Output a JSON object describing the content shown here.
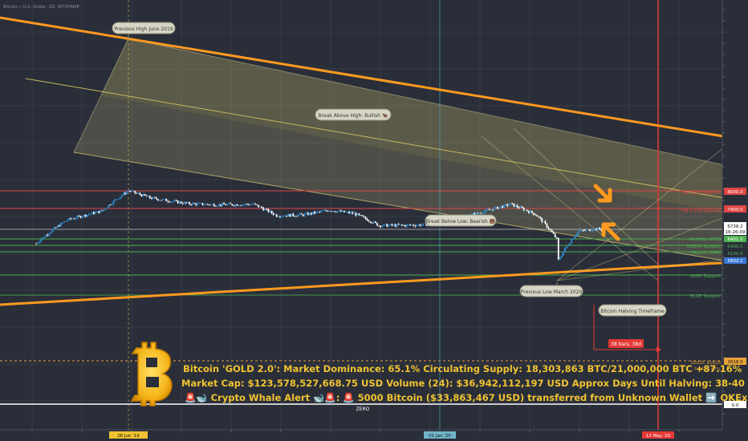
{
  "colors": {
    "background": "#2a2e39",
    "up": "#2d8fd6",
    "down": "#ffffff",
    "channel_fill": "#cfc37a",
    "trendline": "#ff9a1f",
    "level_red": "#e04646",
    "level_green": "#4caf50",
    "halving": "#e53935",
    "text_yellow": "#f2c12e"
  },
  "header": {
    "ticker": "Bitcoin / U.S. Dollar, 1D, BITSTAMP"
  },
  "annotations": {
    "prev_high": "Previous High June 2019",
    "break_above": "Break Above High: Bullish 🐂",
    "break_below": "Break Below Low: Bearish 🐻",
    "prev_low": "Previous Low March 2020",
    "halving_tf": "Bitcoin Halving Timeframe",
    "range": "38 bars, 38d"
  },
  "level_labels": {
    "fib_retrace": "FIB 0.618 Retrace",
    "monthly_open": "Monthly OPEN",
    "support_50ema": "50EMA Support",
    "weekly_open": "Weekly OPEN",
    "support_200": "200D Support",
    "support_hist": "ELGE Support",
    "gold": "GOLD: $1618",
    "gold_change": "-7.58 -0.47%",
    "zero": "ZERO"
  },
  "price_tags": {
    "p8000": "8000.0",
    "p7400": "7400.0",
    "last": "6738.2",
    "countdown": "16:26:09",
    "p6401": "6401.0",
    "p6400": "6400.0",
    "p6100": "6100.0",
    "p5892": "5892.1",
    "gold_tag": "1618.0",
    "zero_tag": "0.0"
  },
  "time_tags": {
    "jun19": "26 Jun '19",
    "jan20": "01 Jan '20",
    "may20": "12 May '20"
  },
  "overlay": {
    "line1": "Bitcoin 'GOLD 2.0': Market Dominance: 65.1%  Circulating Supply: 18,303,863 BTC/21,000,000 BTC +87.16%",
    "line2": "Market Cap: $123,578,527,668.75 USD Volume (24): $36,942,112,197 USD Approx Days Until Halving: 38-40 Days",
    "line3": "🚨🐋 Crypto Whale Alert 🐋🚨:  🚨 5000 Bitcoin ($33,863,467 USD) transferred from Unknown Wallet ➡️ OKEx"
  },
  "chart_data": {
    "type": "candlestick",
    "symbol": "BTCUSD",
    "x": [
      "2019-05-01",
      "2019-05-20",
      "2019-06-10",
      "2019-06-26",
      "2019-07-10",
      "2019-08-01",
      "2019-08-20",
      "2019-09-10",
      "2019-09-24",
      "2019-10-10",
      "2019-10-26",
      "2019-11-10",
      "2019-11-25",
      "2019-12-10",
      "2019-12-25",
      "2020-01-10",
      "2020-01-25",
      "2020-02-13",
      "2020-02-28",
      "2020-03-12",
      "2020-03-13",
      "2020-03-25",
      "2020-04-05",
      "2020-04-08"
    ],
    "close": [
      5300,
      7900,
      9200,
      12900,
      11400,
      10400,
      10200,
      10300,
      8500,
      8600,
      9300,
      8800,
      7200,
      7200,
      7300,
      8000,
      8900,
      10300,
      8700,
      5700,
      4000,
      6500,
      6800,
      6738
    ],
    "y_ticks": [
      0,
      1618,
      5892.1,
      6100,
      6400,
      6738.2,
      7400,
      8000
    ],
    "levels": {
      "fib_0618": 7400,
      "monthly_open": 6401,
      "ema50": 6400,
      "weekly_open": 6100,
      "support_200": 5892.1,
      "gold": 1618,
      "zero": 0,
      "resistance": 8000
    },
    "halving_date": "2020-05-12",
    "previous_high": "Previous High June 2019",
    "previous_low": "Previous Low March 2020"
  }
}
